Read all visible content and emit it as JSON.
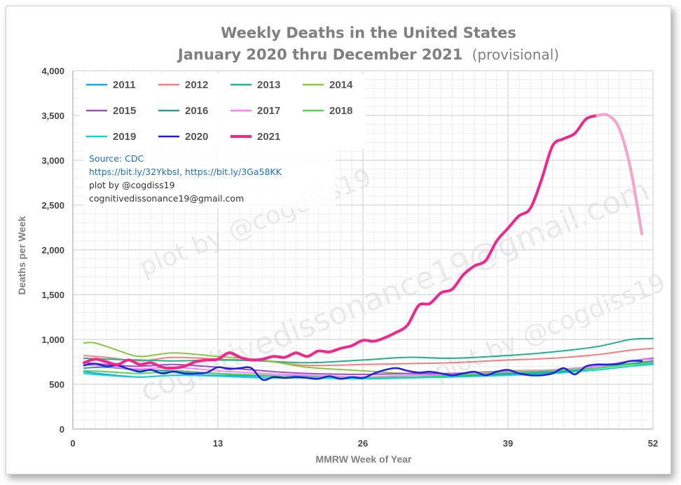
{
  "chart_data": {
    "type": "line",
    "title": "Weekly Deaths in the United States",
    "subtitle_bold": "January 2020 thru December 2021",
    "subtitle_note": "(provisional)",
    "xlabel": "MMRW Week of Year",
    "ylabel": "Deaths per Week",
    "xlim": [
      0,
      52
    ],
    "ylim": [
      0,
      4000
    ],
    "xticks": [
      0,
      13,
      26,
      39,
      52
    ],
    "yticks": [
      0,
      500,
      1000,
      1500,
      2000,
      2500,
      3000,
      3500,
      4000
    ],
    "ytick_labels": [
      "0",
      "500",
      "1,000",
      "1,500",
      "2,000",
      "2,500",
      "3,000",
      "3,500",
      "4,000"
    ],
    "grid": true,
    "legend_position": "top-left",
    "annotations": [
      {
        "text": "Source:  CDC",
        "color": "#1f6fbf"
      },
      {
        "text": "https://bit.ly/32YkbsI, https://bit.ly/3Ga58KK",
        "color": "#1f6fbf"
      },
      {
        "text": "plot by @cogdiss19",
        "color": "#333333"
      },
      {
        "text": "cognitivedissonance19@gmail.com",
        "color": "#333333"
      }
    ],
    "watermarks": [
      "plot by @cogdiss19",
      "cognitivedissonance19@gmail.com",
      "plot by @cogdiss19"
    ],
    "series": [
      {
        "name": "2011",
        "color": "#1fa2e0",
        "width": 2,
        "x": [
          1,
          3,
          6,
          9,
          13,
          17,
          21,
          26,
          30,
          34,
          39,
          43,
          47,
          50,
          52
        ],
        "y": [
          640,
          610,
          580,
          600,
          600,
          590,
          590,
          580,
          580,
          590,
          610,
          630,
          680,
          720,
          740
        ]
      },
      {
        "name": "2012",
        "color": "#f08080",
        "width": 2,
        "x": [
          1,
          3,
          6,
          9,
          13,
          17,
          21,
          26,
          30,
          34,
          39,
          43,
          47,
          50,
          52
        ],
        "y": [
          820,
          800,
          760,
          800,
          780,
          760,
          710,
          720,
          730,
          740,
          770,
          790,
          830,
          880,
          900
        ]
      },
      {
        "name": "2013",
        "color": "#20b08a",
        "width": 2,
        "x": [
          1,
          3,
          6,
          9,
          13,
          17,
          21,
          26,
          30,
          34,
          39,
          43,
          47,
          50,
          52
        ],
        "y": [
          790,
          780,
          770,
          760,
          770,
          760,
          740,
          770,
          800,
          790,
          820,
          860,
          920,
          1000,
          1010
        ]
      },
      {
        "name": "2014",
        "color": "#8cc540",
        "width": 2,
        "x": [
          1,
          2,
          4,
          6,
          9,
          13,
          17,
          21,
          26,
          30,
          34,
          39,
          43,
          47,
          50,
          52
        ],
        "y": [
          960,
          960,
          880,
          810,
          850,
          810,
          770,
          690,
          650,
          620,
          620,
          650,
          660,
          700,
          730,
          730
        ]
      },
      {
        "name": "2015",
        "color": "#9b4fc0",
        "width": 2,
        "x": [
          1,
          3,
          6,
          9,
          13,
          17,
          21,
          26,
          30,
          34,
          39,
          43,
          47,
          50,
          52
        ],
        "y": [
          740,
          720,
          700,
          720,
          690,
          650,
          620,
          610,
          620,
          620,
          640,
          650,
          700,
          760,
          790
        ]
      },
      {
        "name": "2016",
        "color": "#2b9a9a",
        "width": 2,
        "x": [
          1,
          3,
          6,
          9,
          13,
          17,
          21,
          26,
          30,
          34,
          39,
          43,
          47,
          50,
          52
        ],
        "y": [
          680,
          690,
          660,
          650,
          620,
          600,
          580,
          570,
          580,
          590,
          620,
          640,
          680,
          730,
          760
        ]
      },
      {
        "name": "2017",
        "color": "#ff7fff",
        "width": 2,
        "x": [
          1,
          3,
          6,
          9,
          13,
          17,
          21,
          26,
          30,
          34,
          39,
          43,
          47,
          50,
          52
        ],
        "y": [
          720,
          700,
          670,
          690,
          650,
          620,
          600,
          580,
          600,
          610,
          640,
          660,
          700,
          760,
          780
        ]
      },
      {
        "name": "2018",
        "color": "#4ed84e",
        "width": 2,
        "x": [
          1,
          3,
          6,
          9,
          13,
          17,
          21,
          26,
          30,
          34,
          39,
          43,
          47,
          50,
          52
        ],
        "y": [
          650,
          640,
          620,
          640,
          620,
          600,
          580,
          570,
          580,
          600,
          630,
          650,
          680,
          720,
          720
        ]
      },
      {
        "name": "2019",
        "color": "#11d4d4",
        "width": 2,
        "x": [
          1,
          3,
          6,
          9,
          13,
          17,
          21,
          26,
          30,
          34,
          39,
          43,
          47,
          50,
          52
        ],
        "y": [
          620,
          600,
          580,
          600,
          590,
          570,
          570,
          560,
          570,
          580,
          600,
          620,
          660,
          700,
          720
        ]
      },
      {
        "name": "2020",
        "color": "#1f1fe0",
        "width": 2.5,
        "x": [
          1,
          2,
          3,
          4,
          5,
          6,
          7,
          8,
          9,
          10,
          11,
          12,
          13,
          14,
          15,
          16,
          17,
          18,
          19,
          20,
          21,
          22,
          23,
          24,
          25,
          26,
          27,
          28,
          29,
          30,
          31,
          32,
          33,
          34,
          35,
          36,
          37,
          38,
          39,
          40,
          41,
          42,
          43,
          44,
          45,
          46,
          47,
          48,
          49,
          50,
          51
        ],
        "y": [
          710,
          730,
          700,
          710,
          670,
          640,
          660,
          620,
          640,
          620,
          620,
          630,
          690,
          670,
          680,
          680,
          550,
          580,
          570,
          580,
          570,
          560,
          590,
          560,
          580,
          570,
          620,
          660,
          680,
          650,
          630,
          640,
          620,
          600,
          620,
          640,
          600,
          640,
          660,
          620,
          600,
          600,
          620,
          680,
          610,
          700,
          720,
          720,
          730,
          760,
          760
        ]
      },
      {
        "name": "2021",
        "color": "#f0288c",
        "width": 4,
        "x": [
          1,
          2,
          3,
          4,
          5,
          6,
          7,
          8,
          9,
          10,
          11,
          12,
          13,
          14,
          15,
          16,
          17,
          18,
          19,
          20,
          21,
          22,
          23,
          24,
          25,
          26,
          27,
          28,
          29,
          30,
          31,
          32,
          33,
          34,
          35,
          36,
          37,
          38,
          39,
          40,
          41,
          42,
          43,
          44,
          45,
          46,
          47
        ],
        "y": [
          740,
          780,
          750,
          720,
          770,
          720,
          740,
          690,
          680,
          700,
          750,
          770,
          780,
          850,
          800,
          770,
          780,
          810,
          800,
          850,
          810,
          870,
          860,
          900,
          930,
          990,
          980,
          1020,
          1080,
          1160,
          1380,
          1400,
          1520,
          1560,
          1720,
          1820,
          1880,
          2100,
          2240,
          2380,
          2460,
          2780,
          3160,
          3240,
          3300,
          3460,
          3500
        ]
      },
      {
        "name": "",
        "color": "#f5a3c9",
        "width": 4,
        "x": [
          47,
          48,
          49,
          50,
          51
        ],
        "y": [
          3500,
          3500,
          3350,
          2900,
          2180
        ]
      }
    ]
  }
}
